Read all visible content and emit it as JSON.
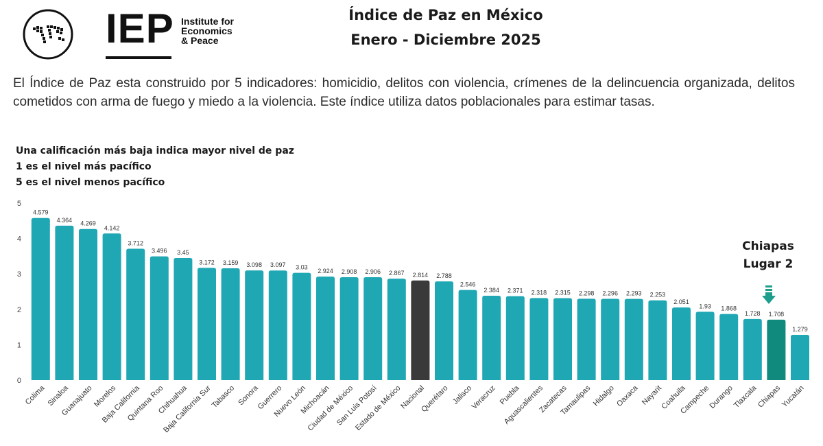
{
  "logo": {
    "mark": "IEP",
    "line1": "Institute for",
    "line2": "Economics",
    "line3": "& Peace"
  },
  "header": {
    "title_line1": "Índice de Paz en México",
    "title_line2": "Enero - Diciembre 2025"
  },
  "description": "El Índice de Paz esta construido por 5 indicadores: homicidio, delitos con violencia, crímenes de la delincuencia organizada, delitos cometidos con arma de fuego y miedo a la violencia. Este índice utiliza datos poblacionales para estimar tasas.",
  "notes": {
    "line1": "Una calificación más baja indica mayor nivel de paz",
    "line2": "1 es el nivel más pacífico",
    "line3": "5 es el nivel menos pacífico"
  },
  "callout": {
    "line1": "Chiapas",
    "line2": "Lugar 2",
    "arrow_icon": "arrow-down-icon"
  },
  "colors": {
    "bar": "#1fa7b4",
    "national": "#3a3a3a",
    "highlight": "#0f8a7c",
    "arrow": "#1e9e8c"
  },
  "chart_data": {
    "type": "bar",
    "ylim": [
      0,
      5
    ],
    "yticks": [
      "0",
      "1",
      "2",
      "3",
      "4",
      "5"
    ],
    "categories": [
      "Colima",
      "Sinaloa",
      "Guanajuato",
      "Morelos",
      "Baja California",
      "Quintana Roo",
      "Chihuahua",
      "Baja California Sur",
      "Tabasco",
      "Sonora",
      "Guerrero",
      "Nuevo León",
      "Michoacán",
      "Ciudad de México",
      "San Luis Potosí",
      "Estado de México",
      "Nacional",
      "Querétaro",
      "Jalisco",
      "Veracruz",
      "Puebla",
      "Aguascalientes",
      "Zacatecas",
      "Tamaulipas",
      "Hidalgo",
      "Oaxaca",
      "Nayarit",
      "Coahuila",
      "Campeche",
      "Durango",
      "Tlaxcala",
      "Chiapas",
      "Yucatán"
    ],
    "values": [
      4.579,
      4.364,
      4.269,
      4.142,
      3.712,
      3.496,
      3.45,
      3.172,
      3.159,
      3.098,
      3.097,
      3.03,
      2.924,
      2.908,
      2.906,
      2.867,
      2.814,
      2.788,
      2.546,
      2.384,
      2.371,
      2.318,
      2.315,
      2.298,
      2.296,
      2.293,
      2.253,
      2.051,
      1.93,
      1.868,
      1.728,
      1.708,
      1.279
    ],
    "value_labels": [
      "4.579",
      "4.364",
      "4.269",
      "4.142",
      "3.712",
      "3.496",
      "3.45",
      "3.172",
      "3.159",
      "3.098",
      "3.097",
      "3.03",
      "2.924",
      "2.908",
      "2.906",
      "2.867",
      "2.814",
      "2.788",
      "2.546",
      "2.384",
      "2.371",
      "2.318",
      "2.315",
      "2.298",
      "2.296",
      "2.293",
      "2.253",
      "2.051",
      "1.93",
      "1.868",
      "1.728",
      "1.708",
      "1.279"
    ],
    "national_category": "Nacional",
    "highlight_category": "Chiapas",
    "grid": false,
    "legend": "none"
  }
}
